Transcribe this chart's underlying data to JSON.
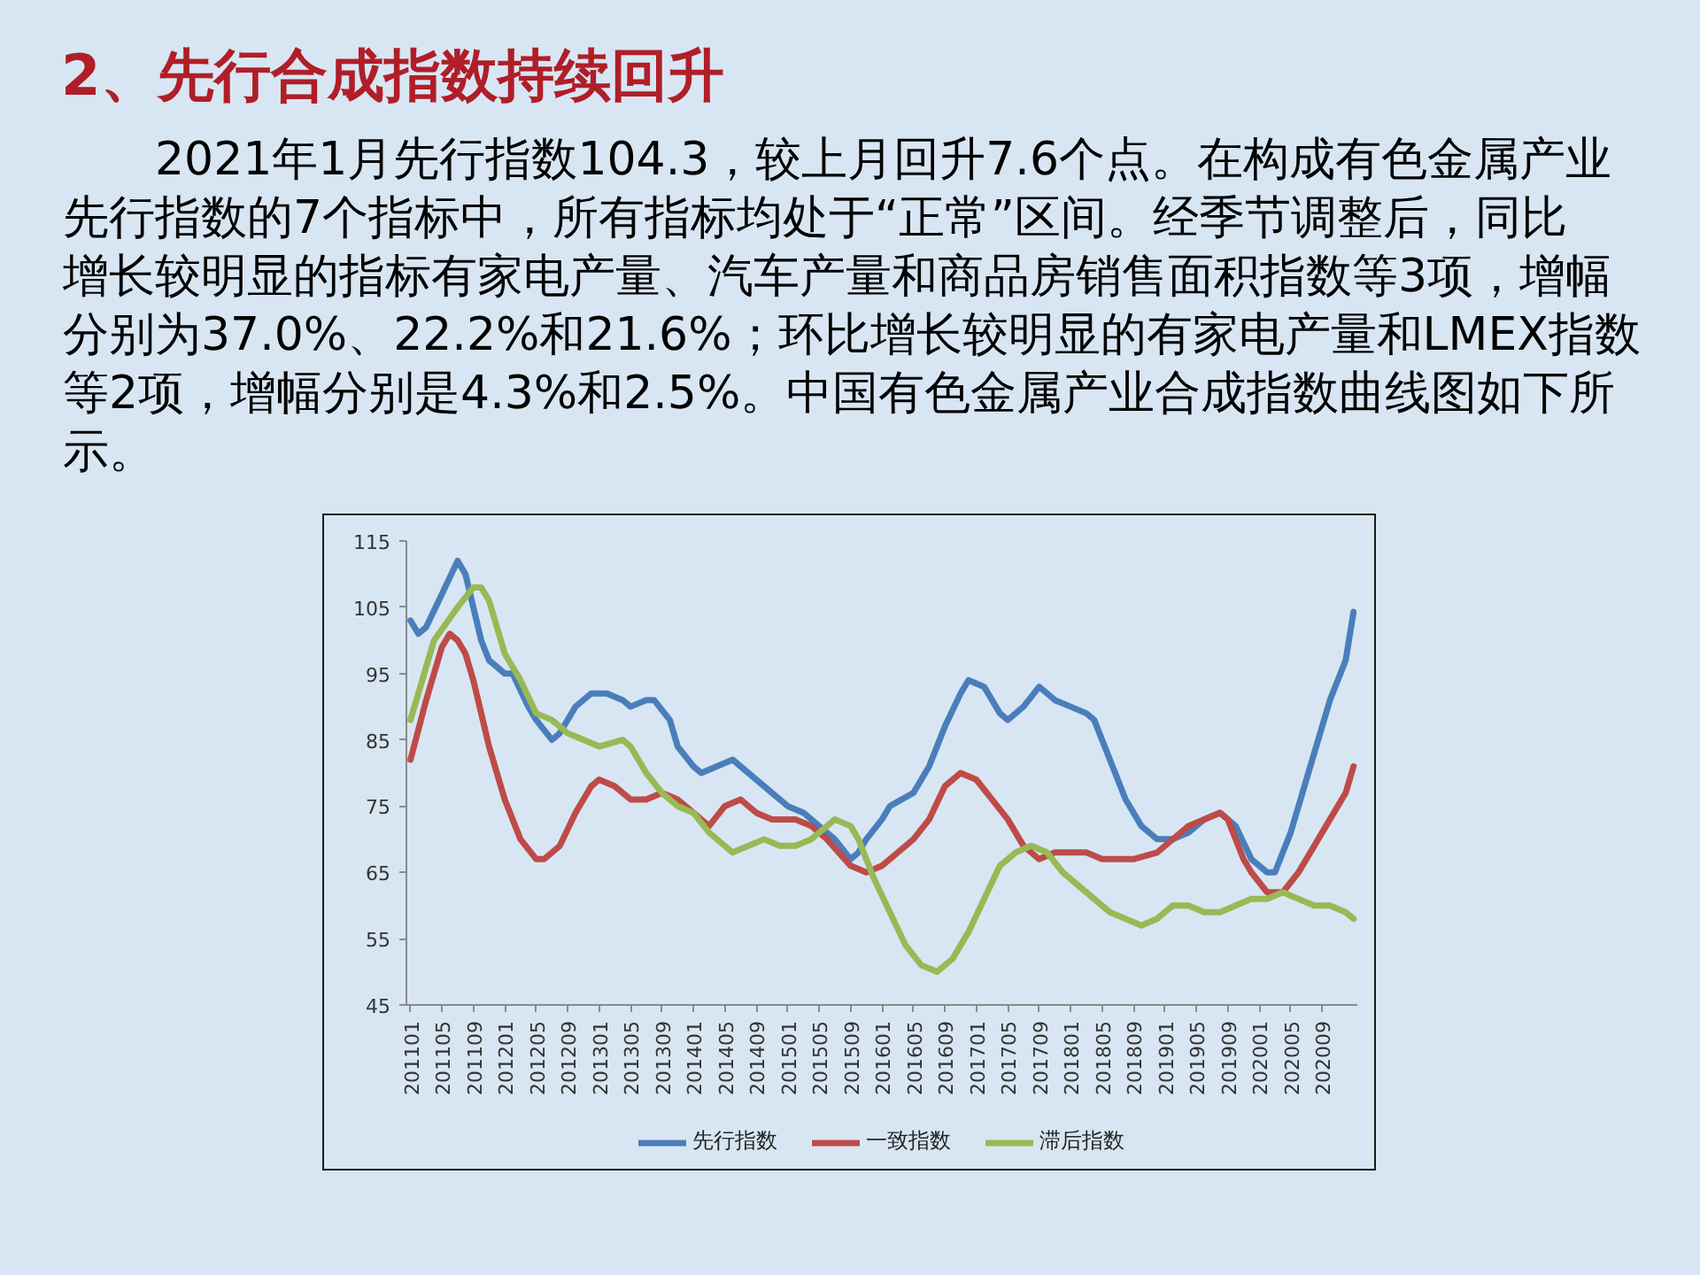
{
  "chart_data": {
    "type": "line",
    "title": "2、先行合成指数持续回升",
    "subtitle": "2021年1月先行指数104.3，较上月回升7.6个点。在构成有色金属产业先行指数的7个指标中，所有指标均处于“正常”区间。经季节调整后，同比增长较明显的指标有家电产量、汽车产量和商品房销售面积指数等3项，增幅分别为37.0%、22.2%和21.6%；环比增长较明显的有家电产量和LMEX指数等2项，增幅分别是4.3%和2.5%。中国有色金属产业合成指数曲线图如下所示。",
    "xlim": [
      "2010-12-16",
      "2021-01-16"
    ],
    "xticks": [
      {
        "value": "2011-01",
        "label": "201101"
      },
      {
        "value": "2011-05",
        "label": "201105"
      },
      {
        "value": "2011-09",
        "label": "201109"
      },
      {
        "value": "2012-01",
        "label": "201201"
      },
      {
        "value": "2012-05",
        "label": "201205"
      },
      {
        "value": "2012-09",
        "label": "201209"
      },
      {
        "value": "2013-01",
        "label": "201301"
      },
      {
        "value": "2013-05",
        "label": "201305"
      },
      {
        "value": "2013-09",
        "label": "201309"
      },
      {
        "value": "2014-01",
        "label": "201401"
      },
      {
        "value": "2014-05",
        "label": "201405"
      },
      {
        "value": "2014-09",
        "label": "201409"
      },
      {
        "value": "2015-01",
        "label": "201501"
      },
      {
        "value": "2015-05",
        "label": "201505"
      },
      {
        "value": "2015-09",
        "label": "201509"
      },
      {
        "value": "2016-01",
        "label": "201601"
      },
      {
        "value": "2016-05",
        "label": "201605"
      },
      {
        "value": "2016-09",
        "label": "201609"
      },
      {
        "value": "2017-01",
        "label": "201701"
      },
      {
        "value": "2017-05",
        "label": "201705"
      },
      {
        "value": "2017-09",
        "label": "201709"
      },
      {
        "value": "2018-01",
        "label": "201801"
      },
      {
        "value": "2018-05",
        "label": "201805"
      },
      {
        "value": "2018-09",
        "label": "201809"
      },
      {
        "value": "2019-01",
        "label": "201901"
      },
      {
        "value": "2019-05",
        "label": "201905"
      },
      {
        "value": "2019-09",
        "label": "201909"
      },
      {
        "value": "2020-01",
        "label": "202001"
      },
      {
        "value": "2020-05",
        "label": "202005"
      },
      {
        "value": "2020-09",
        "label": "202009"
      }
    ],
    "ylim": [
      45,
      115
    ],
    "yticks": [
      45,
      55,
      65,
      75,
      85,
      95,
      105,
      115
    ],
    "legend": "bottom",
    "series": [
      {
        "name": "先行指数",
        "color": "#4a7ebb",
        "x": [
          "2011-01",
          "2011-02",
          "2011-03",
          "2011-05",
          "2011-07",
          "2011-08",
          "2011-09",
          "2011-10",
          "2011-11",
          "2012-01",
          "2012-02",
          "2012-04",
          "2012-05",
          "2012-07",
          "2012-08",
          "2012-10",
          "2012-12",
          "2013-02",
          "2013-04",
          "2013-05",
          "2013-07",
          "2013-08",
          "2013-10",
          "2013-11",
          "2014-01",
          "2014-02",
          "2014-04",
          "2014-06",
          "2014-08",
          "2014-09",
          "2014-11",
          "2015-01",
          "2015-03",
          "2015-05",
          "2015-07",
          "2015-09",
          "2015-10",
          "2015-11",
          "2016-01",
          "2016-02",
          "2016-05",
          "2016-07",
          "2016-09",
          "2016-11",
          "2016-12",
          "2017-02",
          "2017-04",
          "2017-05",
          "2017-07",
          "2017-09",
          "2017-11",
          "2018-01",
          "2018-03",
          "2018-04",
          "2018-06",
          "2018-08",
          "2018-10",
          "2018-12",
          "2019-02",
          "2019-04",
          "2019-06",
          "2019-08",
          "2019-10",
          "2019-12",
          "2020-02",
          "2020-03",
          "2020-04",
          "2020-05",
          "2020-06",
          "2020-08",
          "2020-10",
          "2020-12",
          "2021-01"
        ],
        "values": [
          103,
          101,
          102,
          107,
          112,
          110,
          105,
          100,
          97,
          95,
          95,
          90,
          88,
          85,
          86,
          90,
          92,
          92,
          91,
          90,
          91,
          91,
          88,
          84,
          81,
          80,
          81,
          82,
          80,
          79,
          77,
          75,
          74,
          72,
          70,
          67,
          68,
          70,
          73,
          75,
          77,
          81,
          87,
          92,
          94,
          93,
          89,
          88,
          90,
          93,
          91,
          90,
          89,
          88,
          82,
          76,
          72,
          70,
          70,
          71,
          73,
          74,
          72,
          67,
          65,
          65,
          68,
          71,
          75,
          83,
          91,
          97,
          104.3
        ]
      },
      {
        "name": "一致指数",
        "color": "#be4b48",
        "x": [
          "2011-01",
          "2011-03",
          "2011-05",
          "2011-06",
          "2011-07",
          "2011-08",
          "2011-09",
          "2011-10",
          "2011-11",
          "2011-12",
          "2012-01",
          "2012-03",
          "2012-05",
          "2012-06",
          "2012-08",
          "2012-10",
          "2012-12",
          "2013-01",
          "2013-03",
          "2013-05",
          "2013-07",
          "2013-09",
          "2013-11",
          "2014-01",
          "2014-03",
          "2014-05",
          "2014-07",
          "2014-09",
          "2014-11",
          "2015-02",
          "2015-04",
          "2015-06",
          "2015-09",
          "2015-11",
          "2016-01",
          "2016-03",
          "2016-05",
          "2016-07",
          "2016-09",
          "2016-11",
          "2017-01",
          "2017-03",
          "2017-05",
          "2017-07",
          "2017-09",
          "2017-11",
          "2018-01",
          "2018-03",
          "2018-05",
          "2018-07",
          "2018-09",
          "2018-12",
          "2019-02",
          "2019-04",
          "2019-06",
          "2019-08",
          "2019-09",
          "2019-11",
          "2019-12",
          "2020-02",
          "2020-04",
          "2020-06",
          "2020-08",
          "2020-10",
          "2020-12",
          "2021-01"
        ],
        "values": [
          82,
          91,
          99,
          101,
          100,
          98,
          94,
          89,
          84,
          80,
          76,
          70,
          67,
          67,
          69,
          74,
          78,
          79,
          78,
          76,
          76,
          77,
          76,
          74,
          72,
          75,
          76,
          74,
          73,
          73,
          72,
          70,
          66,
          65,
          66,
          68,
          70,
          73,
          78,
          80,
          79,
          76,
          73,
          69,
          67,
          68,
          68,
          68,
          67,
          67,
          67,
          68,
          70,
          72,
          73,
          74,
          73,
          67,
          65,
          62,
          62,
          65,
          69,
          73,
          77,
          81
        ]
      },
      {
        "name": "滞后指数",
        "color": "#98b954",
        "x": [
          "2011-01",
          "2011-04",
          "2011-07",
          "2011-09",
          "2011-10",
          "2011-11",
          "2012-01",
          "2012-03",
          "2012-05",
          "2012-07",
          "2012-09",
          "2012-11",
          "2013-01",
          "2013-04",
          "2013-05",
          "2013-07",
          "2013-09",
          "2013-11",
          "2014-01",
          "2014-03",
          "2014-05",
          "2014-06",
          "2014-08",
          "2014-10",
          "2014-12",
          "2015-02",
          "2015-04",
          "2015-06",
          "2015-07",
          "2015-09",
          "2015-10",
          "2015-12",
          "2016-02",
          "2016-04",
          "2016-06",
          "2016-08",
          "2016-10",
          "2016-12",
          "2017-02",
          "2017-04",
          "2017-06",
          "2017-08",
          "2017-10",
          "2017-12",
          "2018-02",
          "2018-04",
          "2018-06",
          "2018-08",
          "2018-10",
          "2018-12",
          "2019-02",
          "2019-04",
          "2019-06",
          "2019-08",
          "2019-10",
          "2019-12",
          "2020-02",
          "2020-04",
          "2020-06",
          "2020-08",
          "2020-10",
          "2020-12",
          "2021-01"
        ],
        "values": [
          88,
          100,
          105,
          108,
          108,
          106,
          98,
          94,
          89,
          88,
          86,
          85,
          84,
          85,
          84,
          80,
          77,
          75,
          74,
          71,
          69,
          68,
          69,
          70,
          69,
          69,
          70,
          72,
          73,
          72,
          70,
          64,
          59,
          54,
          51,
          50,
          52,
          56,
          61,
          66,
          68,
          69,
          68,
          65,
          63,
          61,
          59,
          58,
          57,
          58,
          60,
          60,
          59,
          59,
          60,
          61,
          61,
          62,
          61,
          60,
          60,
          59,
          58
        ]
      }
    ]
  }
}
